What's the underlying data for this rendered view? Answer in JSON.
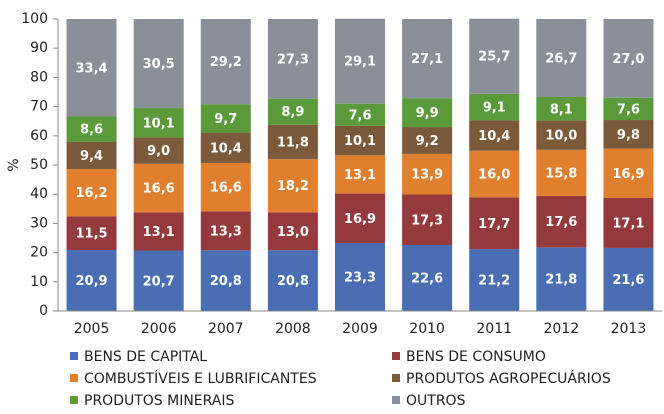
{
  "chart_data": {
    "type": "stacked_bar",
    "y_label": "%",
    "categories": [
      "2005",
      "2006",
      "2007",
      "2008",
      "2009",
      "2010",
      "2011",
      "2012",
      "2013"
    ],
    "series": [
      {
        "name": "BENS DE CAPITAL",
        "color": "#4a6db3",
        "values": [
          20.9,
          20.7,
          20.8,
          20.8,
          23.3,
          22.6,
          21.2,
          21.8,
          21.6
        ],
        "value_labels": [
          "20,9",
          "20,7",
          "20,8",
          "20,8",
          "23,3",
          "22,6",
          "21,2",
          "21,8",
          "21,6"
        ]
      },
      {
        "name": "BENS DE CONSUMO",
        "color": "#943a3c",
        "values": [
          11.5,
          13.1,
          13.3,
          13.0,
          16.9,
          17.3,
          17.7,
          17.6,
          17.1
        ],
        "value_labels": [
          "11,5",
          "13,1",
          "13,3",
          "13,0",
          "16,9",
          "17,3",
          "17,7",
          "17,6",
          "17,1"
        ]
      },
      {
        "name": "COMBUSTÍVEIS E LUBRIFICANTES",
        "color": "#e0802e",
        "values": [
          16.2,
          16.6,
          16.6,
          18.2,
          13.1,
          13.9,
          16.0,
          15.8,
          16.9
        ],
        "value_labels": [
          "16,2",
          "16,6",
          "16,6",
          "18,2",
          "13,1",
          "13,9",
          "16,0",
          "15,8",
          "16,9"
        ]
      },
      {
        "name": "PRODUTOS AGROPECUÁRIOS",
        "color": "#7b5a3b",
        "values": [
          9.4,
          9.0,
          10.4,
          11.8,
          10.1,
          9.2,
          10.4,
          10.0,
          9.8
        ],
        "value_labels": [
          "9,4",
          "9,0",
          "10,4",
          "11,8",
          "10,1",
          "9,2",
          "10,4",
          "10,0",
          "9,8"
        ]
      },
      {
        "name": "PRODUTOS MINERAIS",
        "color": "#5a9a3a",
        "values": [
          8.6,
          10.1,
          9.7,
          8.9,
          7.6,
          9.9,
          9.1,
          8.1,
          7.6
        ],
        "value_labels": [
          "8,6",
          "10,1",
          "9,7",
          "8,9",
          "7,6",
          "9,9",
          "9,1",
          "8,1",
          "7,6"
        ]
      },
      {
        "name": "OUTROS",
        "color": "#8a8f98",
        "values": [
          33.4,
          30.5,
          29.2,
          27.3,
          29.1,
          27.1,
          25.7,
          26.7,
          27.0
        ],
        "value_labels": [
          "33,4",
          "30,5",
          "29,2",
          "27,3",
          "29,1",
          "27,1",
          "25,7",
          "26,7",
          "27,0"
        ]
      }
    ],
    "ylim": [
      0,
      100
    ],
    "yticks": [
      0,
      10,
      20,
      30,
      40,
      50,
      60,
      70,
      80,
      90,
      100
    ]
  }
}
